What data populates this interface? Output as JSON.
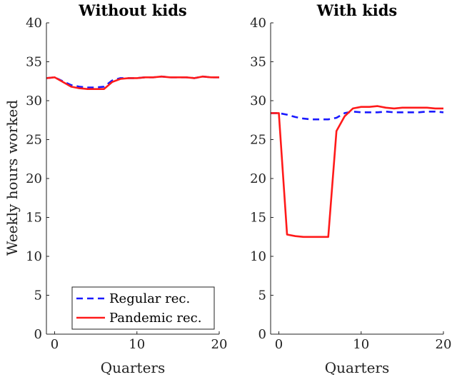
{
  "chart_data": [
    {
      "type": "line",
      "title": "Without kids",
      "xlabel": "Quarters",
      "ylabel": "Weekly hours worked",
      "xlim": [
        -1,
        20
      ],
      "ylim": [
        0,
        40
      ],
      "xticks": [
        0,
        10,
        20
      ],
      "yticks": [
        0,
        5,
        10,
        15,
        20,
        25,
        30,
        35,
        40
      ],
      "legend": "bottom-right",
      "x": [
        -1,
        0,
        1,
        2,
        3,
        4,
        5,
        6,
        7,
        8,
        9,
        10,
        11,
        12,
        13,
        14,
        15,
        16,
        17,
        18,
        19,
        20
      ],
      "series": [
        {
          "name": "Regular rec.",
          "style": "dashed",
          "color": "#1a1aff",
          "values": [
            32.9,
            33.0,
            32.5,
            32.0,
            31.8,
            31.7,
            31.7,
            31.8,
            32.6,
            32.9,
            32.9,
            32.9,
            33.0,
            33.0,
            33.1,
            33.0,
            33.0,
            33.0,
            32.9,
            33.1,
            33.0,
            33.0
          ]
        },
        {
          "name": "Pandemic rec.",
          "style": "solid",
          "color": "#ff1a1a",
          "values": [
            32.9,
            33.0,
            32.4,
            31.8,
            31.6,
            31.5,
            31.5,
            31.5,
            32.4,
            32.8,
            32.9,
            32.9,
            33.0,
            33.0,
            33.1,
            33.0,
            33.0,
            33.0,
            32.9,
            33.1,
            33.0,
            33.0
          ]
        }
      ]
    },
    {
      "type": "line",
      "title": "With kids",
      "xlabel": "Quarters",
      "ylabel": "",
      "xlim": [
        -1,
        20
      ],
      "ylim": [
        0,
        40
      ],
      "xticks": [
        0,
        10,
        20
      ],
      "yticks": [
        0,
        5,
        10,
        15,
        20,
        25,
        30,
        35,
        40
      ],
      "x": [
        -1,
        0,
        1,
        2,
        3,
        4,
        5,
        6,
        7,
        8,
        9,
        10,
        11,
        12,
        13,
        14,
        15,
        16,
        17,
        18,
        19,
        20
      ],
      "series": [
        {
          "name": "Regular rec.",
          "style": "dashed",
          "color": "#1a1aff",
          "values": [
            28.4,
            28.4,
            28.2,
            27.9,
            27.7,
            27.6,
            27.6,
            27.6,
            27.8,
            28.4,
            28.6,
            28.5,
            28.5,
            28.5,
            28.6,
            28.5,
            28.5,
            28.5,
            28.5,
            28.6,
            28.6,
            28.5
          ]
        },
        {
          "name": "Pandemic rec.",
          "style": "solid",
          "color": "#ff1a1a",
          "values": [
            28.4,
            28.4,
            12.8,
            12.6,
            12.5,
            12.5,
            12.5,
            12.5,
            26.1,
            28.0,
            29.0,
            29.2,
            29.2,
            29.3,
            29.1,
            29.0,
            29.1,
            29.1,
            29.1,
            29.1,
            29.0,
            29.0
          ]
        }
      ]
    }
  ]
}
